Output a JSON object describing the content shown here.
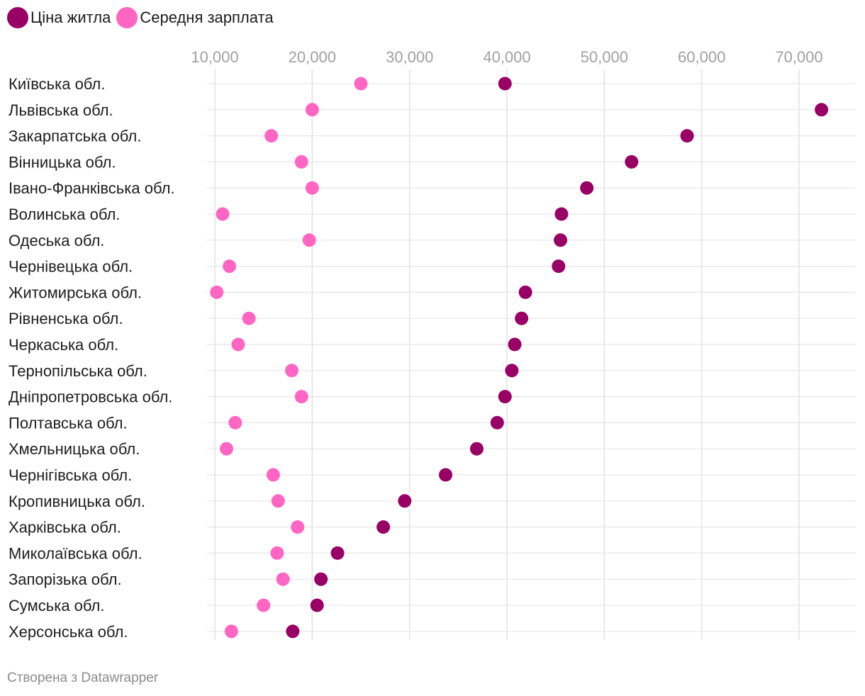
{
  "legend": {
    "items": [
      {
        "label": "Ціна житла",
        "color": "#990066"
      },
      {
        "label": "Середня зарплата",
        "color": "#ff66c4"
      }
    ]
  },
  "chart_data": {
    "type": "scatter",
    "orientation": "horizontal-dot-plot",
    "categories": [
      "Київська обл.",
      "Львівська обл.",
      "Закарпатська обл.",
      "Вінницька обл.",
      "Івано-Франківська обл.",
      "Волинська обл.",
      "Одеська обл.",
      "Чернівецька обл.",
      "Житомирська обл.",
      "Рівненська обл.",
      "Черкаська обл.",
      "Тернопільська обл.",
      "Дніпропетровська обл.",
      "Полтавська обл.",
      "Хмельницька обл.",
      "Чернігівська обл.",
      "Кропивницька обл.",
      "Харківська обл.",
      "Миколаївська обл.",
      "Запорізька обл.",
      "Сумська обл.",
      "Херсонська обл."
    ],
    "series": [
      {
        "name": "Ціна житла",
        "color": "#990066",
        "values": [
          39800,
          72300,
          58500,
          52800,
          48200,
          45600,
          45500,
          45300,
          41900,
          41500,
          40800,
          40500,
          39800,
          39000,
          36900,
          33700,
          29500,
          27300,
          22600,
          20900,
          20500,
          18000
        ]
      },
      {
        "name": "Середня зарплата",
        "color": "#ff66c4",
        "values": [
          25000,
          20000,
          15800,
          18900,
          20000,
          10800,
          19700,
          11500,
          10200,
          13500,
          12400,
          17900,
          18900,
          12100,
          11200,
          16000,
          16500,
          18500,
          16400,
          17000,
          15000,
          11700
        ]
      }
    ],
    "x_ticks": [
      "10,000",
      "20,000",
      "30,000",
      "40,000",
      "50,000",
      "60,000",
      "70,000"
    ],
    "x_tick_values": [
      10000,
      20000,
      30000,
      40000,
      50000,
      60000,
      70000
    ],
    "xlim": [
      10000,
      70000
    ],
    "grid": true,
    "legend_position": "top-left",
    "title": "",
    "xlabel": "",
    "ylabel": ""
  },
  "footer": {
    "credit": "Створена з Datawrapper"
  }
}
